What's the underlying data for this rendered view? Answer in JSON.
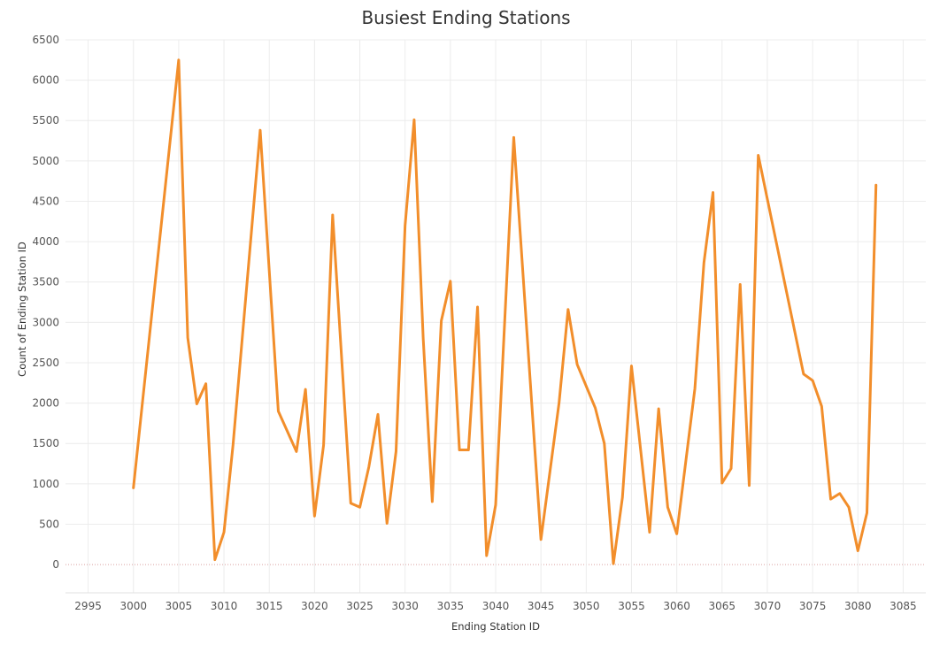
{
  "chart_data": {
    "type": "line",
    "title": "Busiest Ending Stations",
    "xlabel": "Ending Station ID",
    "ylabel": "Count of Ending Station ID",
    "xlim": [
      2992.5,
      3087.5
    ],
    "ylim": [
      -350,
      6500
    ],
    "x_ticks": [
      2995,
      3000,
      3005,
      3010,
      3015,
      3020,
      3025,
      3030,
      3035,
      3040,
      3045,
      3050,
      3055,
      3060,
      3065,
      3070,
      3075,
      3080,
      3085
    ],
    "y_ticks": [
      0,
      500,
      1000,
      1500,
      2000,
      2500,
      3000,
      3500,
      4000,
      4500,
      5000,
      5500,
      6000,
      6500
    ],
    "grid": true,
    "line_color": "#f28e2b",
    "series": [
      {
        "x": [
          3000,
          3005,
          3006,
          3007,
          3008,
          3009,
          3010,
          3011,
          3014,
          3016,
          3018,
          3019,
          3020,
          3021,
          3022,
          3024,
          3025,
          3026,
          3027,
          3028,
          3029,
          3030,
          3031,
          3032,
          3033,
          3034,
          3035,
          3036,
          3037,
          3038,
          3039,
          3040,
          3042,
          3045,
          3047,
          3048,
          3049,
          3051,
          3052,
          3053,
          3054,
          3055,
          3057,
          3058,
          3059,
          3060,
          3062,
          3063,
          3064,
          3065,
          3066,
          3067,
          3068,
          3069,
          3074,
          3075,
          3076,
          3077,
          3078,
          3079,
          3080,
          3081,
          3082
        ],
        "y": [
          950,
          6250,
          2810,
          1990,
          2240,
          60,
          400,
          1480,
          5380,
          1900,
          1400,
          2170,
          600,
          1480,
          4330,
          760,
          710,
          1210,
          1860,
          510,
          1400,
          4200,
          5510,
          2800,
          780,
          3020,
          3510,
          1420,
          1420,
          3190,
          110,
          740,
          5290,
          310,
          2000,
          3160,
          2480,
          1940,
          1500,
          10,
          830,
          2460,
          400,
          1930,
          710,
          380,
          2180,
          3740,
          4610,
          1010,
          1190,
          3470,
          980,
          5070,
          2360,
          2280,
          1960,
          810,
          880,
          710,
          170,
          640,
          4700
        ]
      }
    ]
  }
}
